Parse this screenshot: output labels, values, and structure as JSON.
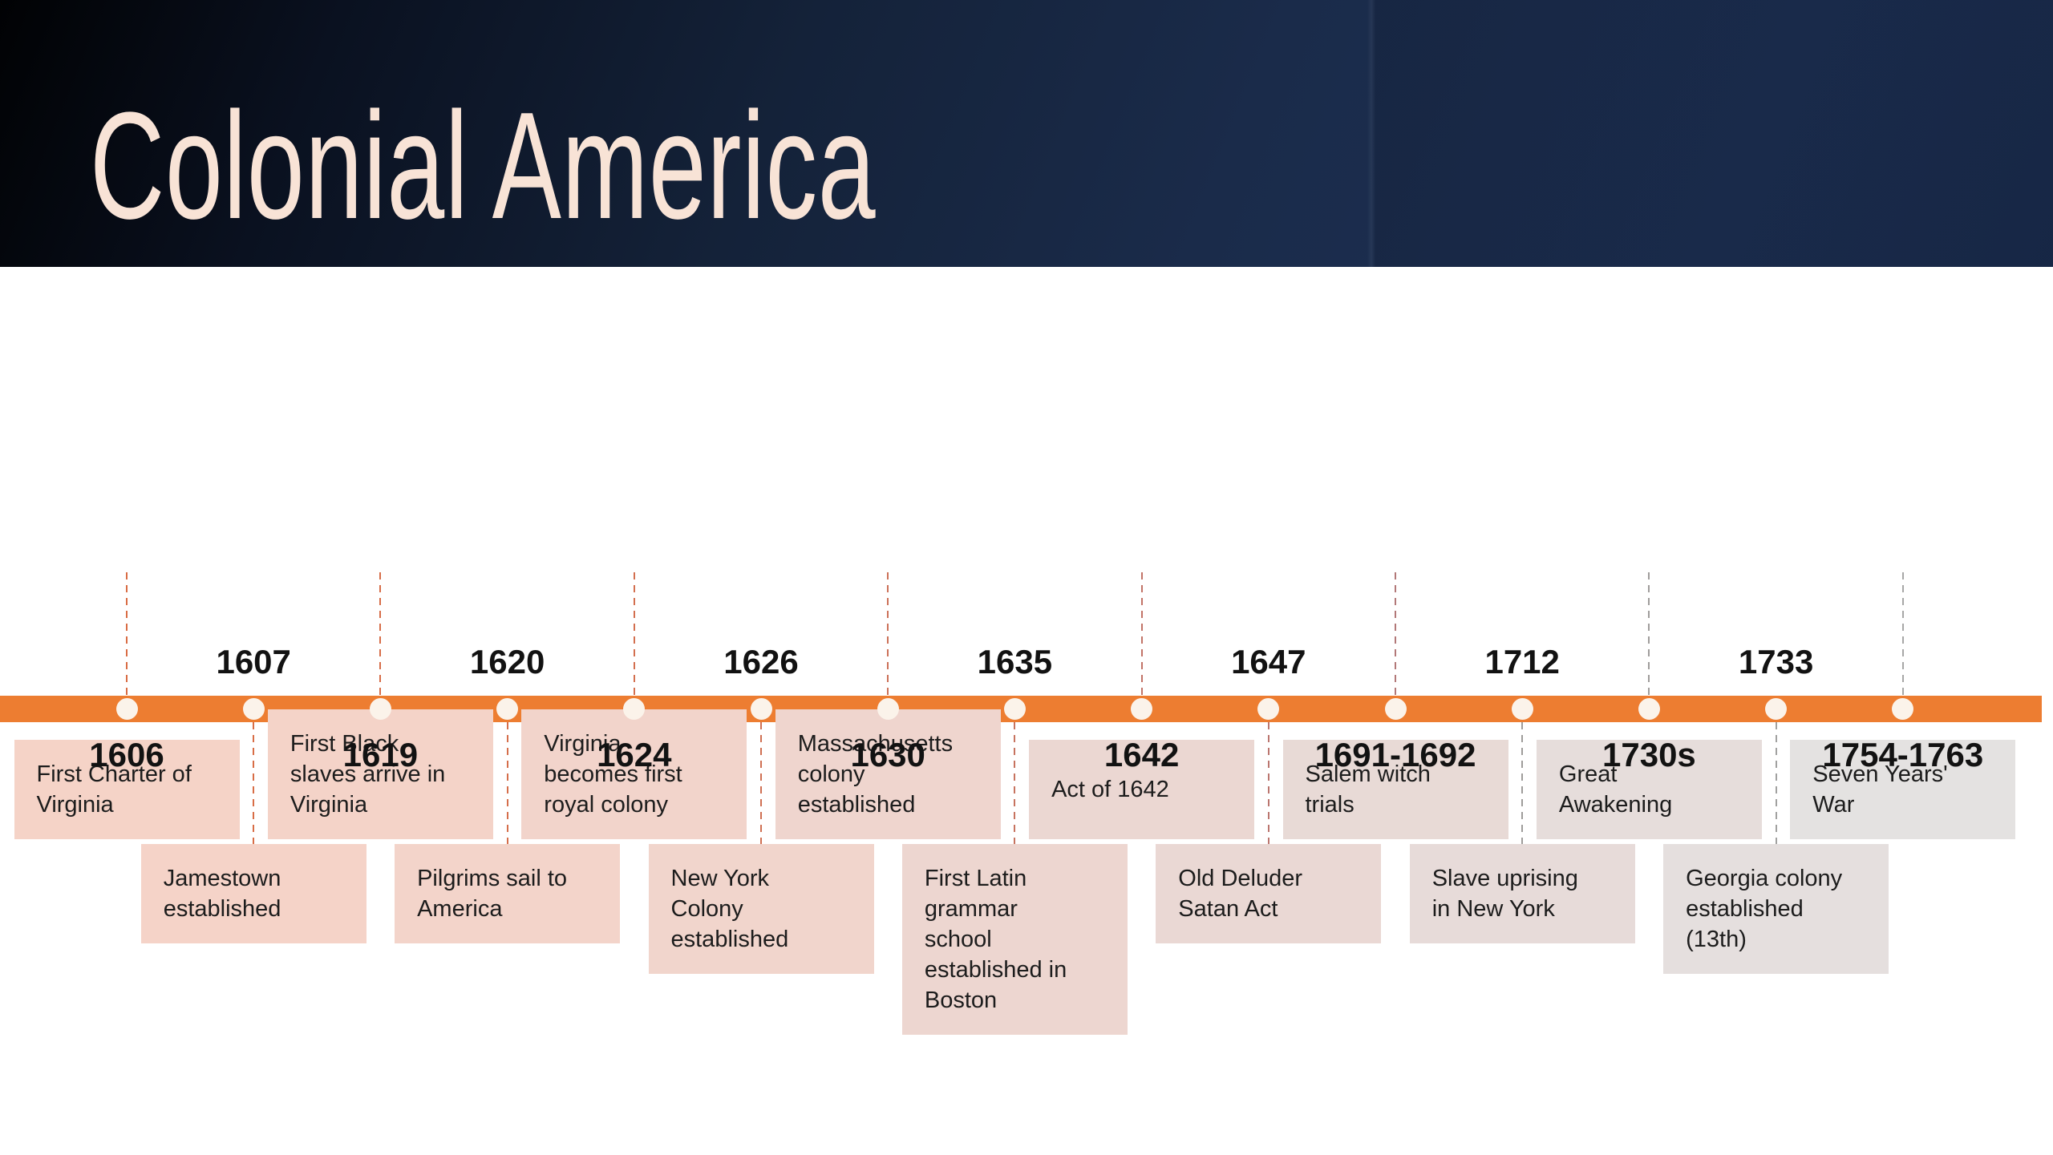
{
  "slide": {
    "title": "Colonial America"
  },
  "colors": {
    "header_navy": "#1B2C4C",
    "title_text": "#F8E3D6",
    "bar": "#ED7D31",
    "dot": "#FBF3EA",
    "year_text": "#121212",
    "box_text": "#1C1C1C"
  },
  "timeline": {
    "events": [
      {
        "year": "1606",
        "label": "First Charter of\nVirginia",
        "side": "top",
        "box_color": "#F5D3C7",
        "connector_color": "#D96C44"
      },
      {
        "year": "1607",
        "label": "Jamestown\nestablished",
        "side": "bottom",
        "box_color": "#F5D3C8",
        "connector_color": "#D86D46"
      },
      {
        "year": "1619",
        "label": "First Black\nslaves arrive in\nVirginia",
        "side": "top",
        "box_color": "#F4D3C8",
        "connector_color": "#D76D48"
      },
      {
        "year": "1620",
        "label": "Pilgrims sail to\nAmerica",
        "side": "bottom",
        "box_color": "#F3D4CA",
        "connector_color": "#D56E4B"
      },
      {
        "year": "1624",
        "label": "Virginia\nbecomes first\nroyal colony",
        "side": "top",
        "box_color": "#F2D4CB",
        "connector_color": "#D36F4F"
      },
      {
        "year": "1626",
        "label": "New York\nColony\nestablished",
        "side": "bottom",
        "box_color": "#F1D5CC",
        "connector_color": "#D07053"
      },
      {
        "year": "1630",
        "label": "Massachusetts\ncolony\nestablished",
        "side": "top",
        "box_color": "#EFD5CE",
        "connector_color": "#CC7158"
      },
      {
        "year": "1635",
        "label": "First Latin\ngrammar\nschool\nestablished in\nBoston",
        "side": "bottom",
        "box_color": "#EDD6D0",
        "connector_color": "#C7735F"
      },
      {
        "year": "1642",
        "label": "Act of 1642",
        "side": "top",
        "box_color": "#EBD7D2",
        "connector_color": "#C27467"
      },
      {
        "year": "1647",
        "label": "Old Deluder\nSatan Act",
        "side": "bottom",
        "box_color": "#EAD8D4",
        "connector_color": "#BB766F"
      },
      {
        "year": "1691-1692",
        "label": "Salem witch\ntrials",
        "side": "top",
        "box_color": "#E8DAD6",
        "connector_color": "#B27878"
      },
      {
        "year": "1712",
        "label": "Slave uprising\nin New York",
        "side": "bottom",
        "box_color": "#E7DBD9",
        "connector_color": "#9E9C9A"
      },
      {
        "year": "1730s",
        "label": "Great\nAwakening",
        "side": "top",
        "box_color": "#E6DDDB",
        "connector_color": "#9F9D9B"
      },
      {
        "year": "1733",
        "label": "Georgia colony\nestablished\n(13th)",
        "side": "bottom",
        "box_color": "#E5DFDE",
        "connector_color": "#A1A1A0"
      },
      {
        "year": "1754-1763",
        "label": "Seven Years'\nWar",
        "side": "top",
        "box_color": "#E4E2E1",
        "connector_color": "#A7A7A6"
      }
    ]
  }
}
